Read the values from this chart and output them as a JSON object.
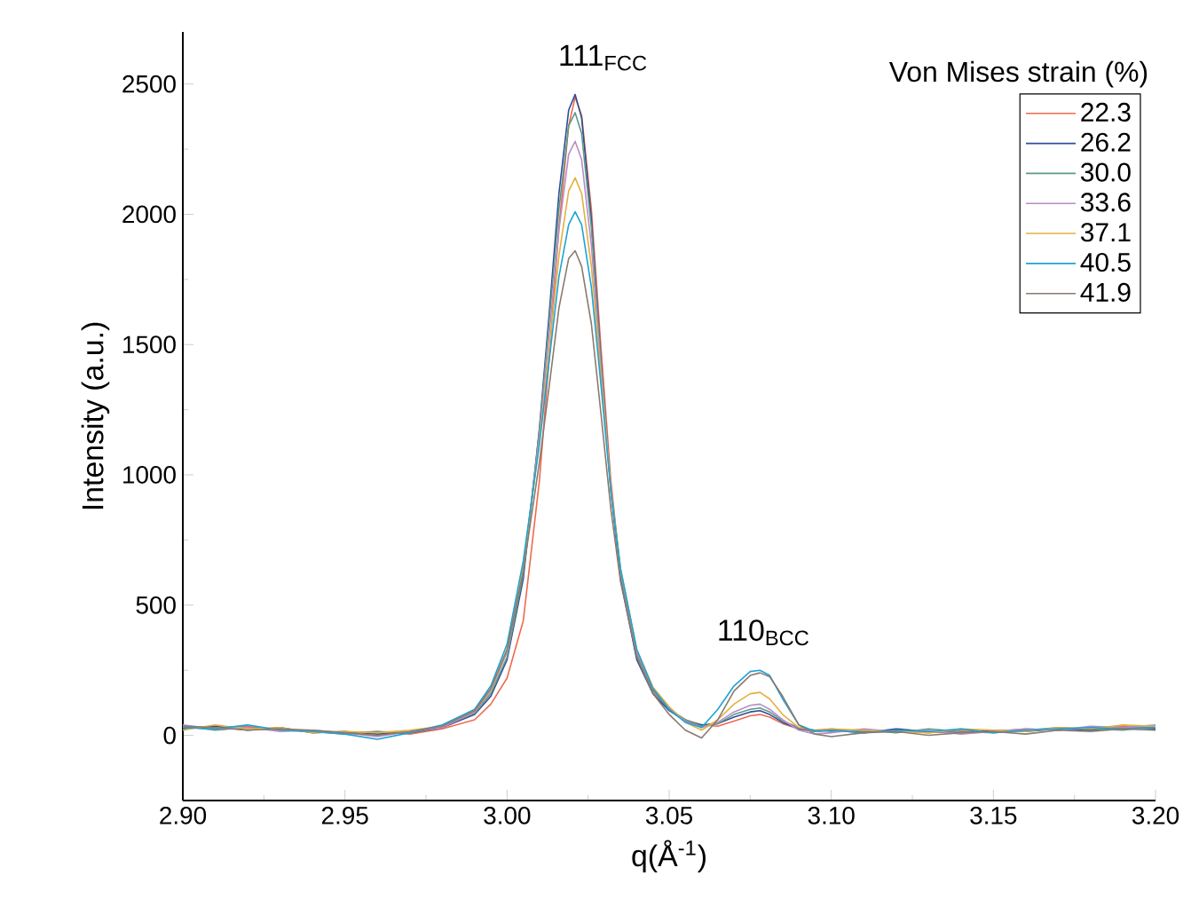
{
  "chart_data": {
    "type": "line",
    "xlabel": "q(Å$^{-1}$)",
    "ylabel": "Intensity (a.u.)",
    "legend_title": "Von Mises strain (%)",
    "legend": "top right",
    "grid": false,
    "marker": "none",
    "line_style": "solid",
    "xlim": [
      2.9,
      3.2
    ],
    "xticks": [
      {
        "value": 2.9,
        "label": "2.90"
      },
      2.95,
      {
        "value": 3.0,
        "label": "3.00"
      },
      3.05,
      {
        "value": 3.1,
        "label": "3.10"
      },
      3.15,
      {
        "value": 3.2,
        "label": "3.20"
      }
    ],
    "ylim": [
      -250,
      2700
    ],
    "yticks": [
      0,
      500,
      1000,
      1500,
      2000,
      2500
    ],
    "annotations": [
      "111$_{FCC}$",
      "110$_{BCC}$"
    ],
    "x": [
      2.9,
      2.91,
      2.92,
      2.93,
      2.94,
      2.95,
      2.96,
      2.97,
      2.98,
      2.99,
      2.995,
      3.0,
      3.005,
      3.01,
      3.013,
      3.016,
      3.019,
      3.021,
      3.023,
      3.026,
      3.029,
      3.032,
      3.035,
      3.04,
      3.045,
      3.05,
      3.055,
      3.06,
      3.065,
      3.07,
      3.075,
      3.078,
      3.081,
      3.085,
      3.09,
      3.095,
      3.1,
      3.11,
      3.12,
      3.13,
      3.14,
      3.15,
      3.16,
      3.17,
      3.18,
      3.19,
      3.2
    ],
    "series": [
      {
        "name": "22.3",
        "color": "#ee6a4e",
        "values": [
          30,
          25,
          35,
          20,
          15,
          10,
          15,
          5,
          25,
          60,
          120,
          220,
          440,
          980,
          1450,
          1950,
          2340,
          2450,
          2380,
          2020,
          1480,
          980,
          620,
          300,
          170,
          100,
          60,
          40,
          35,
          55,
          75,
          80,
          70,
          45,
          25,
          20,
          25,
          15,
          20,
          10,
          20,
          15,
          25,
          20,
          30,
          35,
          30
        ]
      },
      {
        "name": "26.2",
        "color": "#2e4d9a",
        "values": [
          25,
          35,
          20,
          30,
          10,
          15,
          5,
          10,
          30,
          80,
          150,
          290,
          600,
          1180,
          1620,
          2080,
          2400,
          2460,
          2370,
          1980,
          1430,
          940,
          600,
          290,
          160,
          95,
          55,
          40,
          45,
          70,
          90,
          95,
          80,
          50,
          25,
          15,
          20,
          10,
          25,
          15,
          10,
          20,
          15,
          25,
          20,
          30,
          25
        ]
      },
      {
        "name": "30.0",
        "color": "#5a9a86",
        "values": [
          35,
          20,
          30,
          25,
          15,
          5,
          15,
          10,
          35,
          85,
          160,
          300,
          620,
          1170,
          1590,
          2020,
          2340,
          2390,
          2310,
          1950,
          1420,
          950,
          620,
          310,
          175,
          100,
          60,
          35,
          45,
          80,
          100,
          105,
          90,
          55,
          30,
          20,
          15,
          20,
          10,
          25,
          15,
          10,
          20,
          30,
          25,
          20,
          35
        ]
      },
      {
        "name": "33.6",
        "color": "#b88cc8",
        "values": [
          40,
          25,
          30,
          15,
          20,
          10,
          -5,
          15,
          30,
          90,
          170,
          320,
          640,
          1150,
          1540,
          1940,
          2230,
          2280,
          2210,
          1880,
          1400,
          950,
          630,
          320,
          180,
          105,
          55,
          30,
          50,
          90,
          115,
          120,
          100,
          60,
          20,
          5,
          10,
          25,
          15,
          20,
          5,
          15,
          25,
          20,
          35,
          30,
          40
        ]
      },
      {
        "name": "37.1",
        "color": "#e3b03e",
        "values": [
          20,
          40,
          25,
          30,
          10,
          15,
          10,
          20,
          35,
          95,
          175,
          330,
          650,
          1130,
          1480,
          1840,
          2090,
          2140,
          2080,
          1800,
          1370,
          950,
          640,
          330,
          185,
          110,
          50,
          20,
          60,
          120,
          160,
          165,
          140,
          80,
          30,
          15,
          25,
          20,
          15,
          10,
          25,
          20,
          15,
          30,
          25,
          40,
          35
        ]
      },
      {
        "name": "40.5",
        "color": "#1ea2d6",
        "values": [
          30,
          25,
          40,
          20,
          15,
          5,
          -15,
          10,
          40,
          100,
          190,
          350,
          670,
          1120,
          1440,
          1760,
          1960,
          2010,
          1960,
          1720,
          1340,
          940,
          640,
          330,
          180,
          100,
          50,
          30,
          100,
          190,
          245,
          250,
          230,
          140,
          40,
          15,
          20,
          10,
          20,
          15,
          25,
          10,
          20,
          25,
          30,
          25,
          30
        ]
      },
      {
        "name": "41.9",
        "color": "#8a7a6e",
        "values": [
          35,
          30,
          20,
          25,
          20,
          10,
          0,
          15,
          35,
          95,
          180,
          330,
          630,
          1050,
          1340,
          1640,
          1830,
          1860,
          1800,
          1580,
          1230,
          870,
          590,
          300,
          160,
          80,
          20,
          -10,
          60,
          170,
          230,
          240,
          225,
          150,
          40,
          5,
          -5,
          10,
          15,
          0,
          10,
          15,
          5,
          20,
          15,
          25,
          20
        ]
      }
    ]
  }
}
